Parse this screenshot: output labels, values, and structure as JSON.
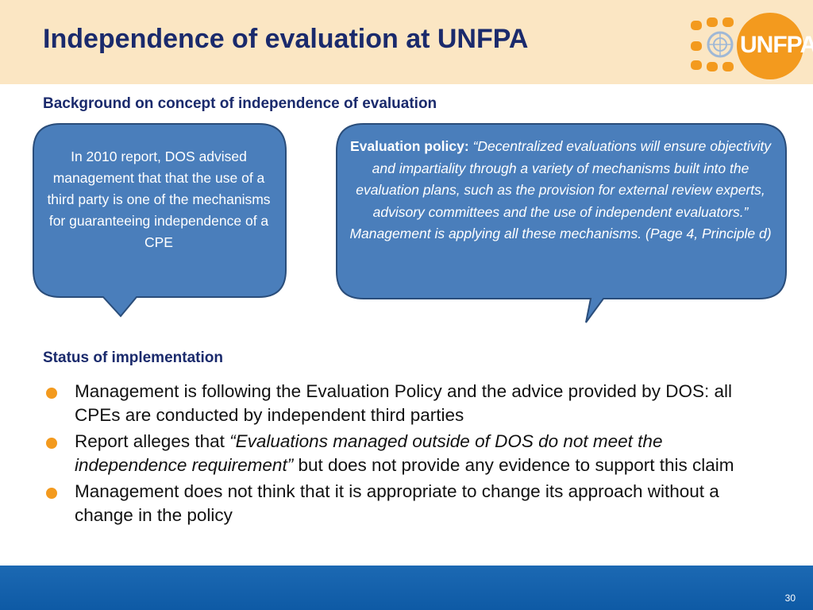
{
  "slide": {
    "title": "Independence of evaluation at UNFPA",
    "logo_text": "UNFPA",
    "page_number": "30"
  },
  "background": {
    "heading": "Background on concept of independence of evaluation",
    "callout_left": "In 2010 report, DOS advised management that that the use of a third party is one of the mechanisms for guaranteeing independence of a CPE",
    "callout_right_lead": "Evaluation policy: ",
    "callout_right_quote": "“Decentralized evaluations will ensure objectivity and impartiality through a variety of mechanisms built into the evaluation plans, such as the provision for external review experts, advisory committees and the use of independent evaluators.”  Management is applying all these mechanisms. (Page 4, Principle d)"
  },
  "status": {
    "heading": "Status of implementation",
    "bullet1": "Management is following the Evaluation Policy and the advice provided by DOS: all CPEs are conducted by independent third parties",
    "bullet2_pre": "Report alleges that ",
    "bullet2_quote": "“Evaluations managed outside of DOS do not meet the independence requirement”",
    "bullet2_post": "  but does not provide any evidence to support this claim",
    "bullet3": "Management does not think that it is appropriate to change its approach without a change in the policy"
  },
  "colors": {
    "header_bg": "#fbe6c3",
    "title_text": "#1a2a6c",
    "callout_fill": "#4a7ebb",
    "callout_border": "#2a4d7a",
    "bullet_dot": "#f39a1e",
    "footer_bg": "#0e5aa5",
    "logo_orange": "#f39a1e"
  },
  "icons": [
    "un-emblem-icon",
    "bullet-dot-icon"
  ]
}
